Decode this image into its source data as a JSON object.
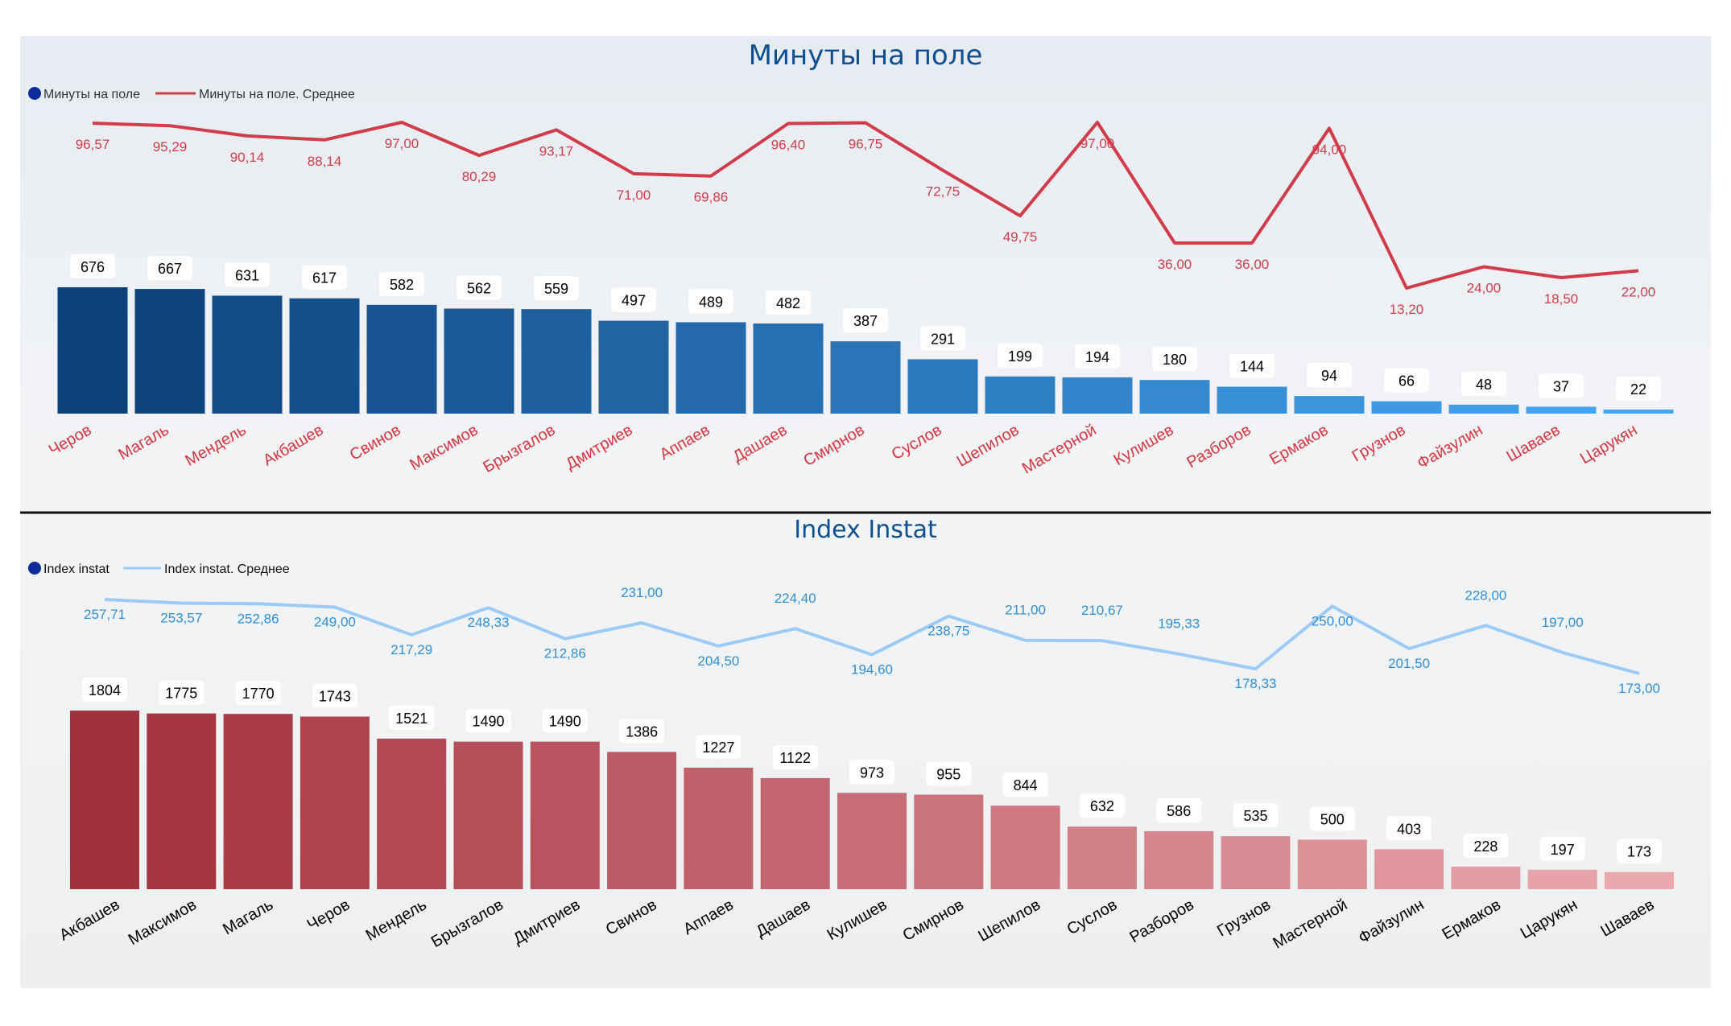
{
  "chart_data": [
    {
      "type": "bar",
      "title": "Минуты на поле",
      "legend_placement": "top-left",
      "legend": {
        "bar_label": "Минуты на поле",
        "line_label": "Минуты на поле. Среднее"
      },
      "categories": [
        "Черов",
        "Магаль",
        "Мендель",
        "Акбашев",
        "Свинов",
        "Максимов",
        "Брызгалов",
        "Дмитриев",
        "Аппаев",
        "Дашаев",
        "Смирнов",
        "Суслов",
        "Шепилов",
        "Мастерной",
        "Кулишев",
        "Разборов",
        "Ермаков",
        "Грузнов",
        "Файзулин",
        "Шаваев",
        "Царукян"
      ],
      "series": [
        {
          "name": "Минуты на поле",
          "kind": "bar",
          "values": [
            676,
            667,
            631,
            617,
            582,
            562,
            559,
            497,
            489,
            482,
            387,
            291,
            199,
            194,
            180,
            144,
            94,
            66,
            48,
            37,
            22
          ],
          "labels": [
            "676",
            "667",
            "631",
            "617",
            "582",
            "562",
            "559",
            "497",
            "489",
            "482",
            "387",
            "291",
            "199",
            "194",
            "180",
            "144",
            "94",
            "66",
            "48",
            "37",
            "22"
          ]
        },
        {
          "name": "Минуты на поле. Среднее",
          "kind": "line",
          "values": [
            96.57,
            95.29,
            90.14,
            88.14,
            97.0,
            80.29,
            93.17,
            71.0,
            69.86,
            96.4,
            96.75,
            72.75,
            49.75,
            97.0,
            36.0,
            36.0,
            94.0,
            13.2,
            24.0,
            18.5,
            22.0
          ],
          "labels": [
            "96,57",
            "95,29",
            "90,14",
            "88,14",
            "97,00",
            "80,29",
            "93,17",
            "71,00",
            "69,86",
            "96,40",
            "96,75",
            "72,75",
            "49,75",
            "97,00",
            "36,00",
            "36,00",
            "94,00",
            "13,20",
            "24,00",
            "18,50",
            "22,00"
          ]
        }
      ],
      "colors": {
        "bar_dark": "#0c4079",
        "bar_light": "#47a9f5",
        "line": "#d23c4a",
        "category_text": "#d8353f",
        "title": "#0e4f92"
      }
    },
    {
      "type": "bar",
      "title": "Index Instat",
      "legend_placement": "top-left",
      "legend": {
        "bar_label": "Index instat",
        "line_label": "Index instat. Среднее"
      },
      "categories": [
        "Акбашев",
        "Максимов",
        "Магаль",
        "Черов",
        "Мендель",
        "Брызгалов",
        "Дмитриев",
        "Свинов",
        "Аппаев",
        "Дашаев",
        "Кулишев",
        "Смирнов",
        "Шепилов",
        "Суслов",
        "Разборов",
        "Грузнов",
        "Мастерной",
        "Файзулин",
        "Ермаков",
        "Царукян",
        "Шаваев"
      ],
      "series": [
        {
          "name": "Index instat",
          "kind": "bar",
          "values": [
            1804,
            1775,
            1770,
            1743,
            1521,
            1490,
            1490,
            1386,
            1227,
            1122,
            973,
            955,
            844,
            632,
            586,
            535,
            500,
            403,
            228,
            197,
            173
          ],
          "labels": [
            "1804",
            "1775",
            "1770",
            "1743",
            "1521",
            "1490",
            "1490",
            "1386",
            "1227",
            "1122",
            "973",
            "955",
            "844",
            "632",
            "586",
            "535",
            "500",
            "403",
            "228",
            "197",
            "173"
          ]
        },
        {
          "name": "Index instat. Среднее",
          "kind": "line",
          "values": [
            257.71,
            253.57,
            252.86,
            249.0,
            217.29,
            248.33,
            212.86,
            231.0,
            204.5,
            224.4,
            194.6,
            238.75,
            211.0,
            210.67,
            195.33,
            178.33,
            250.0,
            201.5,
            228.0,
            197.0,
            173.0
          ],
          "labels": [
            "257,71",
            "253,57",
            "252,86",
            "249,00",
            "217,29",
            "248,33",
            "212,86",
            "231,00",
            "204,50",
            "224,40",
            "194,60",
            "238,75",
            "211,00",
            "210,67",
            "195,33",
            "178,33",
            "250,00",
            "201,50",
            "228,00",
            "197,00",
            "173,00"
          ]
        }
      ],
      "colors": {
        "bar_dark": "#a3303d",
        "bar_light": "#eaa9ae",
        "line": "#9ccbf7",
        "line_text": "#2f8fdc",
        "category_text": "#000000",
        "title": "#0e4f92"
      }
    }
  ]
}
